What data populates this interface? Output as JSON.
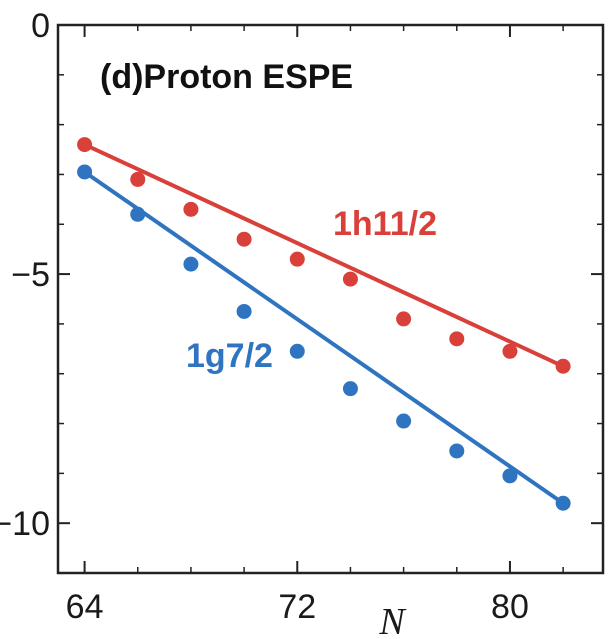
{
  "chart_data": {
    "type": "scatter",
    "title": "(d)Proton ESPE",
    "xlabel": "N",
    "ylabel": "",
    "xlim": [
      63,
      83.5
    ],
    "ylim": [
      -11,
      0
    ],
    "xticks": [
      64,
      72,
      80
    ],
    "xtick_labels": [
      "64",
      "72",
      "80"
    ],
    "yticks": [
      0,
      -5,
      -10
    ],
    "ytick_labels": [
      "0",
      "−5",
      "−10"
    ],
    "grid": false,
    "legend": "none",
    "series": [
      {
        "name": "1h11/2",
        "color": "#d9403a",
        "points": {
          "x": [
            64,
            66,
            68,
            70,
            72,
            74,
            76,
            78,
            80,
            82
          ],
          "y": [
            -2.4,
            -3.1,
            -3.7,
            -4.3,
            -4.7,
            -5.1,
            -5.9,
            -6.3,
            -6.55,
            -6.85
          ]
        },
        "fit_line": {
          "x": [
            64,
            82
          ],
          "y": [
            -2.4,
            -6.85
          ]
        }
      },
      {
        "name": "1g7/2",
        "color": "#2f74c0",
        "points": {
          "x": [
            64,
            66,
            68,
            70,
            72,
            74,
            76,
            78,
            80,
            82
          ],
          "y": [
            -2.95,
            -3.8,
            -4.8,
            -5.75,
            -6.55,
            -7.3,
            -7.95,
            -8.55,
            -9.05,
            -9.6
          ]
        },
        "fit_line": {
          "x": [
            64,
            82
          ],
          "y": [
            -2.95,
            -9.6
          ]
        }
      }
    ]
  }
}
